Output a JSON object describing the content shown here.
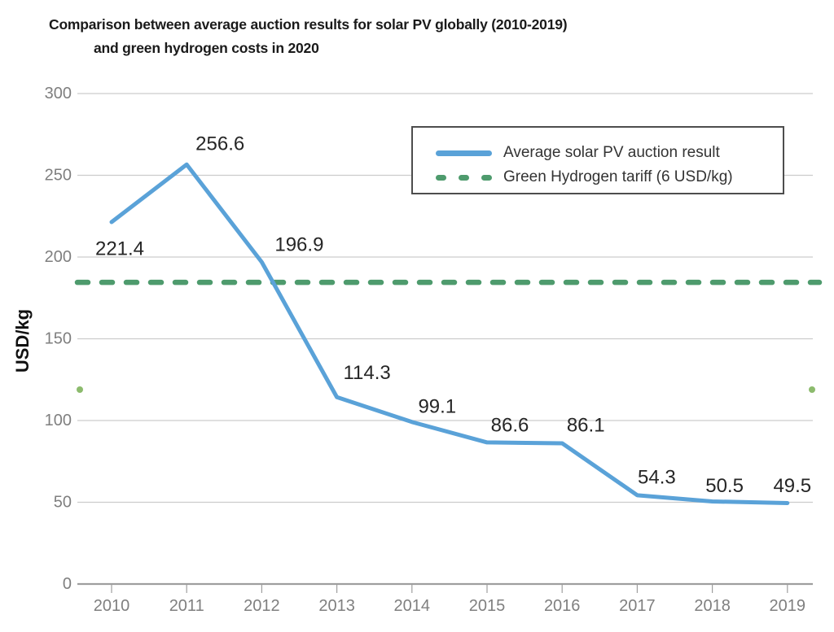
{
  "title": {
    "line1": "Comparison between average auction results for solar PV globally (2010-2019)",
    "line2": "and green hydrogen costs in 2020"
  },
  "y_axis_title": "USD/kg",
  "legend": {
    "items": [
      {
        "label": "Average solar PV auction result",
        "swatch": "solid-line",
        "color": "#5aa2d8"
      },
      {
        "label": "Green Hydrogen tariff (6 USD/kg)",
        "swatch": "dashed-line",
        "color": "#4e9b6d"
      }
    ]
  },
  "chart_data": {
    "type": "line",
    "title": "Comparison between average auction results for solar PV globally (2010-2019) and green hydrogen costs in 2020",
    "xlabel": "",
    "ylabel": "USD/kg",
    "x": [
      2010,
      2011,
      2012,
      2013,
      2014,
      2015,
      2016,
      2017,
      2018,
      2019
    ],
    "ylim": [
      0,
      300
    ],
    "y_ticks": [
      0,
      50,
      100,
      150,
      200,
      250,
      300
    ],
    "grid": "horizontal",
    "legend_position": "upper-right-box",
    "series": [
      {
        "name": "Average solar PV auction result",
        "type": "line",
        "style": "solid",
        "color": "#5aa2d8",
        "values": [
          221.4,
          256.6,
          196.9,
          114.3,
          99.1,
          86.6,
          86.1,
          54.3,
          50.5,
          49.5
        ],
        "point_labels": true
      },
      {
        "name": "Green Hydrogen tariff (6 USD/kg)",
        "type": "hline",
        "style": "dashed",
        "color": "#4e9b6d",
        "level": 184.5,
        "stated_value": "6 USD/kg"
      }
    ]
  },
  "colors": {
    "gridline": "#cccccc",
    "axis_line": "#9e9e9e",
    "tick_label": "#7f7f7f",
    "data_label": "#262626",
    "stray_dot": "#8cbb6d",
    "legend_border": "#4d4d4d",
    "title_text": "#1a1a1a"
  }
}
